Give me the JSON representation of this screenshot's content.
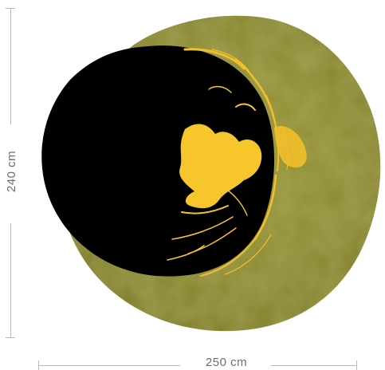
{
  "rug": {
    "width_label": "250 cm",
    "height_label": "240 cm",
    "colors": {
      "olive_gold": "#8c8a2e",
      "olive_dark": "#6f6d22",
      "gold_leaf": "#f2bf2a",
      "gold_light": "#ffd54a",
      "black": "#000000"
    }
  }
}
